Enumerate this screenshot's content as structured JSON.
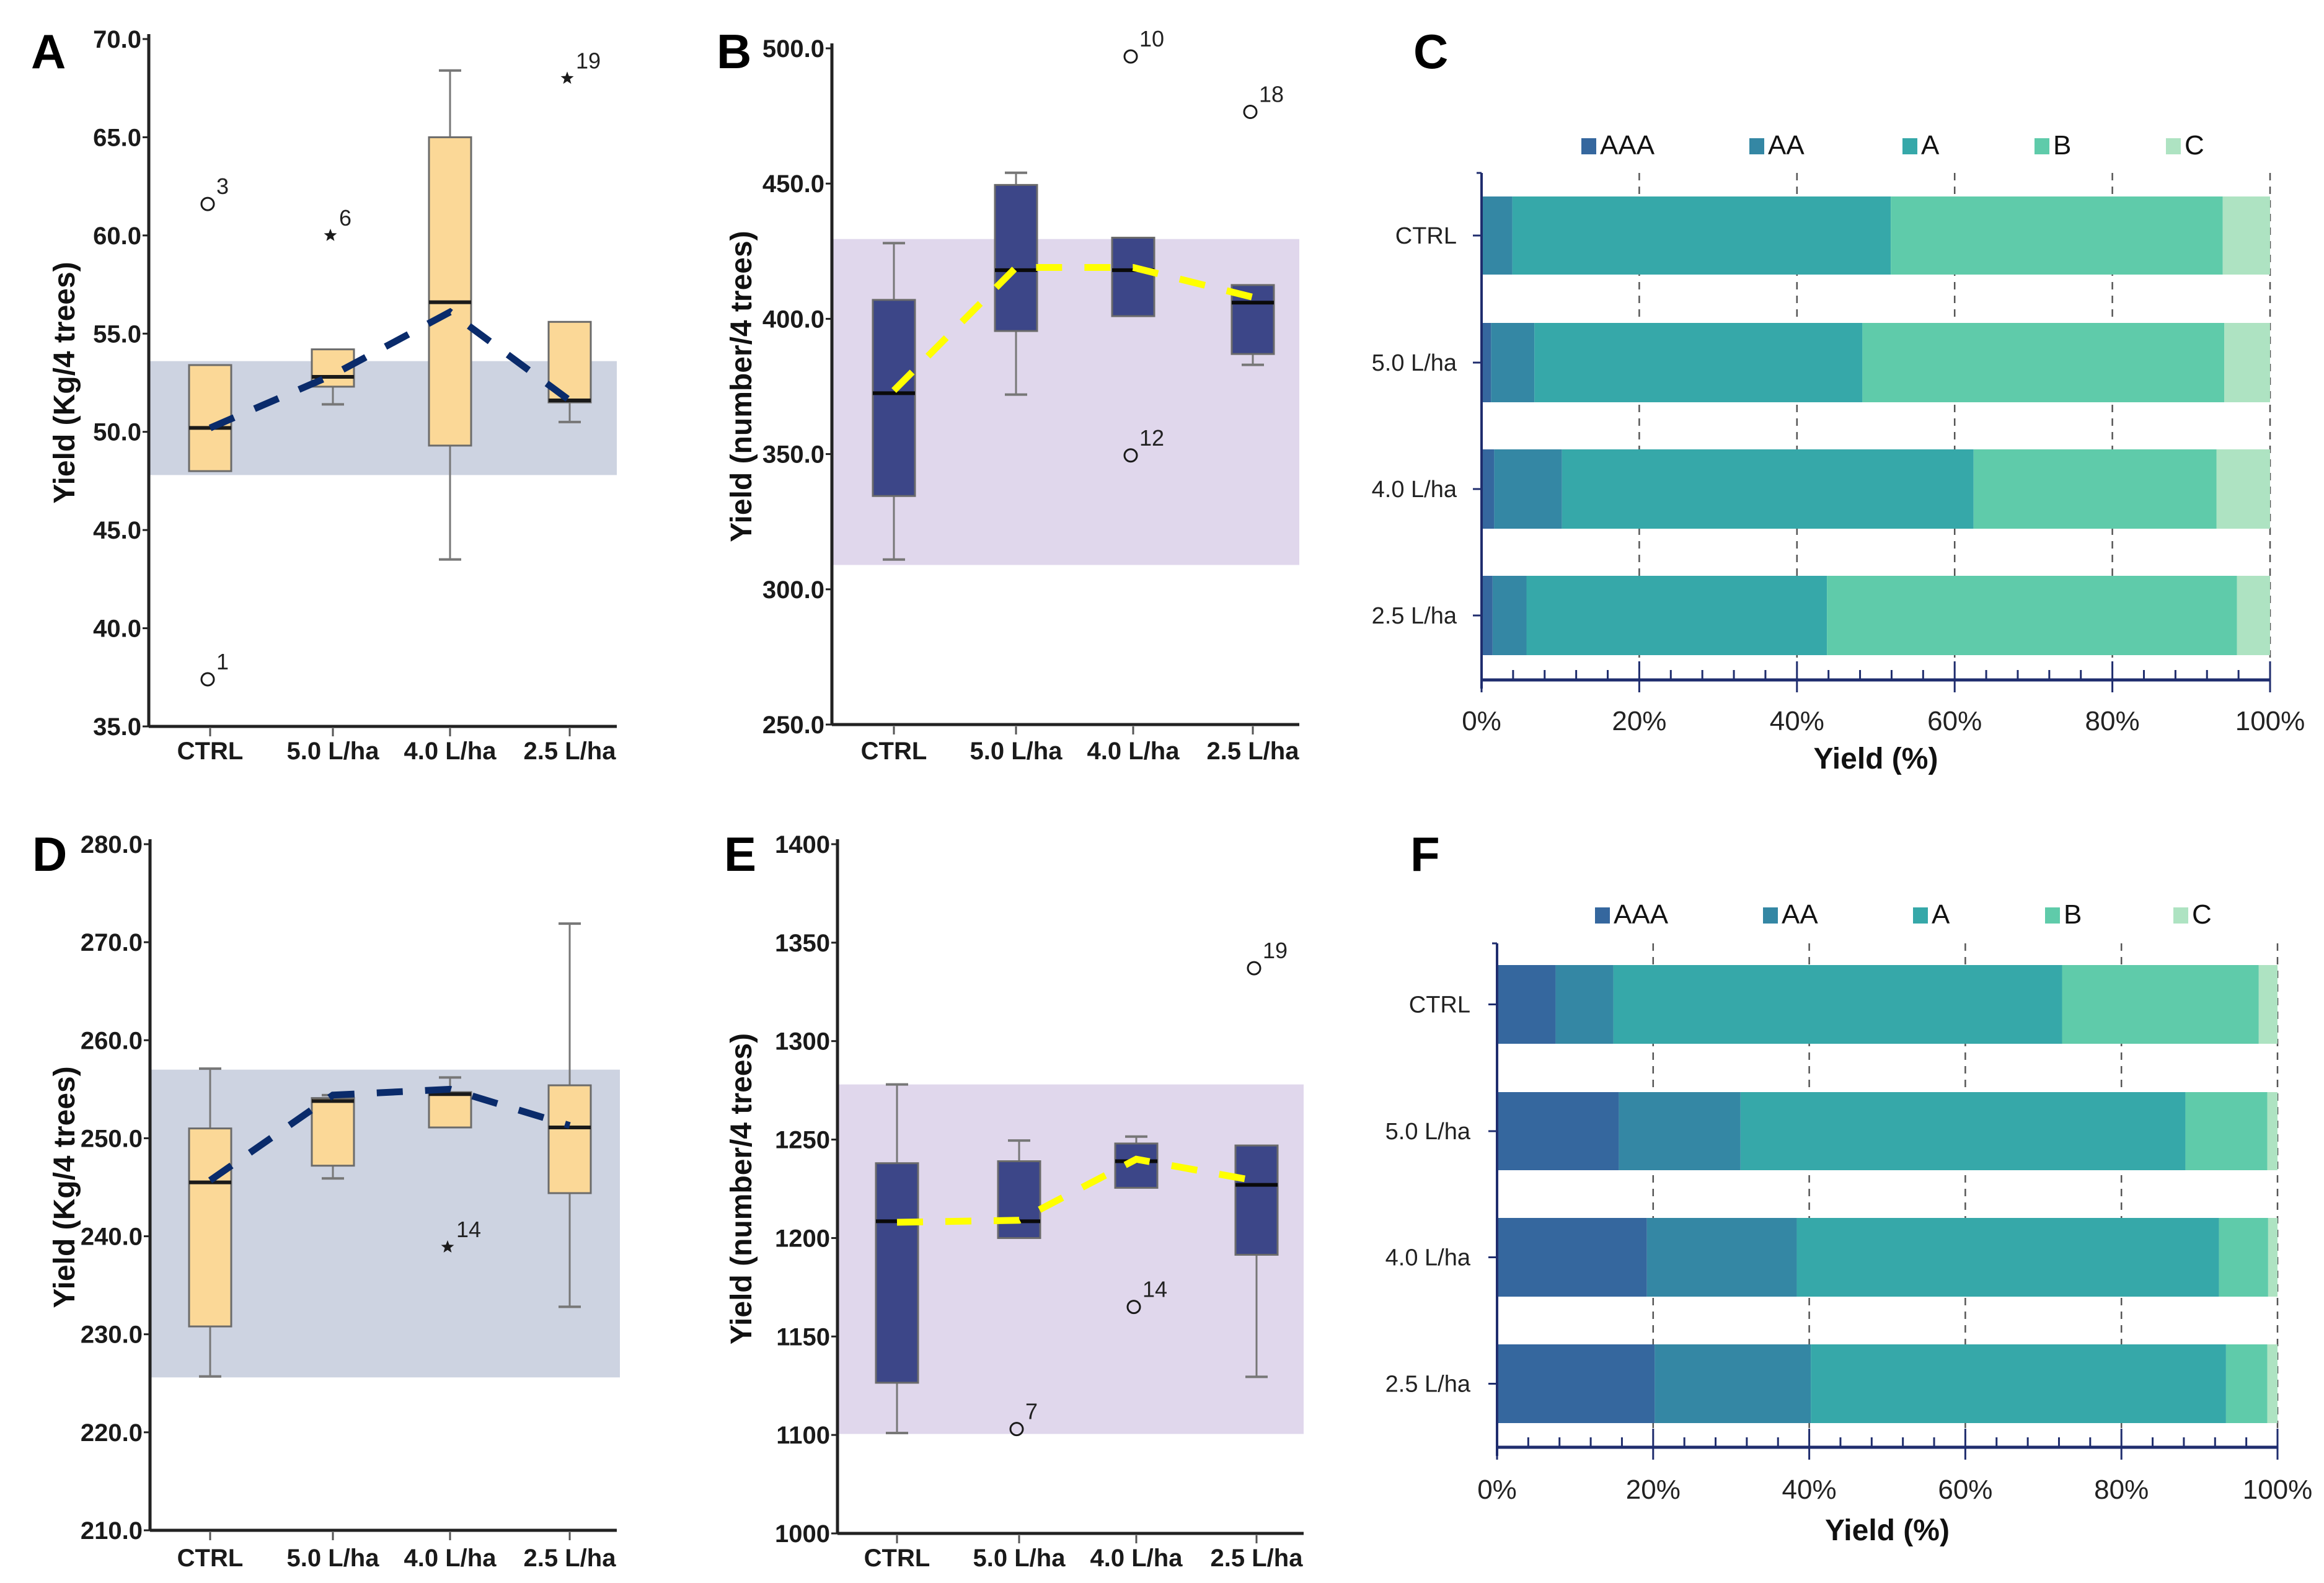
{
  "figure": {
    "panels": [
      "A",
      "B",
      "C",
      "D",
      "E",
      "F"
    ]
  },
  "chart_data": [
    {
      "panel": "A",
      "type": "box",
      "ylabel": "Yield (Kg/4 trees)",
      "xlabel": "",
      "categories": [
        "CTRL",
        "5.0 L/ha",
        "4.0 L/ha",
        "2.5 L/ha"
      ],
      "ylim": [
        35.0,
        70.0
      ],
      "yticks": [
        35.0,
        40.0,
        45.0,
        50.0,
        55.0,
        60.0,
        65.0,
        70.0
      ],
      "ytick_labels": [
        "35.0",
        "40.0",
        "45.0",
        "50.0",
        "55.0",
        "60.0",
        "65.0",
        "70.0"
      ],
      "reference_band": [
        47.8,
        53.6
      ],
      "colors": {
        "box": "#fbd897",
        "band": "#cdd3e1",
        "mean_line": "#0a2b6b",
        "median": "#1a1a1a"
      },
      "boxes": [
        {
          "category": "CTRL",
          "whisker_low": 48.0,
          "q1": 48.0,
          "median": 50.2,
          "q3": 53.4,
          "whisker_high": 53.4
        },
        {
          "category": "5.0 L/ha",
          "whisker_low": 51.4,
          "q1": 52.3,
          "median": 52.8,
          "q3": 54.2,
          "whisker_high": 54.2
        },
        {
          "category": "4.0 L/ha",
          "whisker_low": 43.5,
          "q1": 49.3,
          "median": 56.6,
          "q3": 65.0,
          "whisker_high": 68.4
        },
        {
          "category": "2.5 L/ha",
          "whisker_low": 50.5,
          "q1": 51.5,
          "median": 51.6,
          "q3": 55.6,
          "whisker_high": 55.6
        }
      ],
      "means": [
        50.2,
        52.9,
        56.1,
        51.6
      ],
      "outliers": [
        {
          "category": "CTRL",
          "value": 61.6,
          "label": "3",
          "marker": "circle"
        },
        {
          "category": "CTRL",
          "value": 37.4,
          "label": "1",
          "marker": "circle"
        },
        {
          "category": "5.0 L/ha",
          "value": 60.0,
          "label": "6",
          "marker": "star"
        },
        {
          "category": "2.5 L/ha",
          "value": 68.0,
          "label": "19",
          "marker": "star"
        }
      ]
    },
    {
      "panel": "B",
      "type": "box",
      "ylabel": "Yield (number/4 trees)",
      "xlabel": "",
      "categories": [
        "CTRL",
        "5.0 L/ha",
        "4.0 L/ha",
        "2.5 L/ha"
      ],
      "ylim": [
        250.0,
        500.0
      ],
      "yticks": [
        250.0,
        300.0,
        350.0,
        400.0,
        450.0,
        500.0
      ],
      "ytick_labels": [
        "250.0",
        "300.0",
        "350.0",
        "400.0",
        "450.0",
        "500.0"
      ],
      "reference_band": [
        309.0,
        429.5
      ],
      "colors": {
        "box": "#3c4688",
        "band": "#e0d7ec",
        "mean_line": "#ffff00",
        "median": "#0a0a0a"
      },
      "boxes": [
        {
          "category": "CTRL",
          "whisker_low": 311.0,
          "q1": 334.5,
          "median": 372.5,
          "q3": 407.0,
          "whisker_high": 428.0
        },
        {
          "category": "5.0 L/ha",
          "whisker_low": 372.0,
          "q1": 395.5,
          "median": 418.0,
          "q3": 449.5,
          "whisker_high": 454.0
        },
        {
          "category": "4.0 L/ha",
          "whisker_low": 401.0,
          "q1": 401.0,
          "median": 418.0,
          "q3": 430.0,
          "whisker_high": 430.0
        },
        {
          "category": "2.5 L/ha",
          "whisker_low": 383.0,
          "q1": 387.0,
          "median": 406.0,
          "q3": 412.5,
          "whisker_high": 412.5
        }
      ],
      "means": [
        373.5,
        419.0,
        419.0,
        408.0
      ],
      "outliers": [
        {
          "category": "4.0 L/ha",
          "value": 497.0,
          "label": "10",
          "marker": "circle"
        },
        {
          "category": "4.0 L/ha",
          "value": 349.5,
          "label": "12",
          "marker": "circle"
        },
        {
          "category": "2.5 L/ha",
          "value": 476.5,
          "label": "18",
          "marker": "circle"
        }
      ]
    },
    {
      "panel": "C",
      "type": "bar",
      "orientation": "horizontal-stacked-100",
      "xlabel": "Yield (%)",
      "ylabel": "",
      "categories": [
        "CTRL",
        "5.0 L/ha",
        "4.0 L/ha",
        "2.5 L/ha"
      ],
      "xlim": [
        0,
        100
      ],
      "xticks": [
        0,
        20,
        40,
        60,
        80,
        100
      ],
      "xtick_labels": [
        "0%",
        "20%",
        "40%",
        "60%",
        "80%",
        "100%"
      ],
      "grid": "vertical dashed",
      "legend": "top",
      "series": [
        {
          "name": "AAA",
          "color": "#35679e",
          "values": [
            0.0,
            1.2,
            1.6,
            1.4
          ]
        },
        {
          "name": "AA",
          "color": "#3487a4",
          "values": [
            3.9,
            5.5,
            8.6,
            4.3
          ]
        },
        {
          "name": "A",
          "color": "#36a8a9",
          "values": [
            48.0,
            41.6,
            52.2,
            38.1
          ]
        },
        {
          "name": "B",
          "color": "#5fcbaa",
          "values": [
            42.1,
            45.9,
            30.8,
            52.0
          ]
        },
        {
          "name": "C",
          "color": "#aee3c2",
          "values": [
            6.0,
            5.8,
            6.8,
            4.2
          ]
        }
      ]
    },
    {
      "panel": "D",
      "type": "box",
      "ylabel": "Yield (Kg/4 trees)",
      "xlabel": "",
      "categories": [
        "CTRL",
        "5.0 L/ha",
        "4.0 L/ha",
        "2.5 L/ha"
      ],
      "ylim": [
        210.0,
        280.0
      ],
      "yticks": [
        210.0,
        220.0,
        230.0,
        240.0,
        250.0,
        260.0,
        270.0,
        280.0
      ],
      "ytick_labels": [
        "210.0",
        "220.0",
        "230.0",
        "240.0",
        "250.0",
        "260.0",
        "270.0",
        "280.0"
      ],
      "reference_band": [
        225.6,
        257.0
      ],
      "colors": {
        "box": "#fbd897",
        "band": "#cdd3e1",
        "mean_line": "#0a2b6b",
        "median": "#1a1a1a"
      },
      "boxes": [
        {
          "category": "CTRL",
          "whisker_low": 225.7,
          "q1": 230.8,
          "median": 245.5,
          "q3": 251.0,
          "whisker_high": 257.1
        },
        {
          "category": "5.0 L/ha",
          "whisker_low": 245.9,
          "q1": 247.2,
          "median": 253.8,
          "q3": 254.1,
          "whisker_high": 254.4
        },
        {
          "category": "4.0 L/ha",
          "whisker_low": 251.1,
          "q1": 251.1,
          "median": 254.5,
          "q3": 254.7,
          "whisker_high": 256.2
        },
        {
          "category": "2.5 L/ha",
          "whisker_low": 232.8,
          "q1": 244.4,
          "median": 251.1,
          "q3": 255.4,
          "whisker_high": 271.9
        }
      ],
      "means": [
        245.7,
        254.4,
        255.0,
        251.3
      ],
      "outliers": [
        {
          "category": "4.0 L/ha",
          "value": 238.9,
          "label": "14",
          "marker": "star"
        }
      ]
    },
    {
      "panel": "E",
      "type": "box",
      "ylabel": "Yield (number/4 trees)",
      "xlabel": "",
      "categories": [
        "CTRL",
        "5.0 L/ha",
        "4.0 L/ha",
        "2.5 L/ha"
      ],
      "ylim": [
        1000,
        1400
      ],
      "yticks": [
        1000,
        1100,
        1150,
        1200,
        1250,
        1300,
        1350,
        1400
      ],
      "ytick_labels": [
        "1000",
        "1100",
        "1150",
        "1200",
        "1250",
        "1300",
        "1350",
        "1400"
      ],
      "reference_band": [
        1100.5,
        1278.0
      ],
      "colors": {
        "box": "#3c4688",
        "band": "#e0d7ec",
        "mean_line": "#ffff00",
        "median": "#0a0a0a"
      },
      "boxes": [
        {
          "category": "CTRL",
          "whisker_low": 1101.0,
          "q1": 1126.5,
          "median": 1208.5,
          "q3": 1238.0,
          "whisker_high": 1278.0
        },
        {
          "category": "5.0 L/ha",
          "whisker_low": 1200.0,
          "q1": 1200.0,
          "median": 1208.5,
          "q3": 1239.0,
          "whisker_high": 1249.5
        },
        {
          "category": "4.0 L/ha",
          "whisker_low": 1225.5,
          "q1": 1225.5,
          "median": 1239.0,
          "q3": 1248.0,
          "whisker_high": 1251.5
        },
        {
          "category": "2.5 L/ha",
          "whisker_low": 1129.5,
          "q1": 1191.5,
          "median": 1227.0,
          "q3": 1247.0,
          "whisker_high": 1247.0
        }
      ],
      "means": [
        1208.0,
        1209.0,
        1240.0,
        1229.0
      ],
      "outliers": [
        {
          "category": "5.0 L/ha",
          "value": 1103.0,
          "label": "7",
          "marker": "circle"
        },
        {
          "category": "4.0 L/ha",
          "value": 1165.0,
          "label": "14",
          "marker": "circle"
        },
        {
          "category": "2.5 L/ha",
          "value": 1337.0,
          "label": "19",
          "marker": "circle"
        }
      ]
    },
    {
      "panel": "F",
      "type": "bar",
      "orientation": "horizontal-stacked-100",
      "xlabel": "Yield (%)",
      "ylabel": "",
      "categories": [
        "CTRL",
        "5.0 L/ha",
        "4.0 L/ha",
        "2.5 L/ha"
      ],
      "xlim": [
        0,
        100
      ],
      "xticks": [
        0,
        20,
        40,
        60,
        80,
        100
      ],
      "xtick_labels": [
        "0%",
        "20%",
        "40%",
        "60%",
        "80%",
        "100%"
      ],
      "grid": "vertical dashed",
      "legend": "top",
      "series": [
        {
          "name": "AAA",
          "color": "#35679e",
          "values": [
            7.5,
            15.6,
            19.2,
            20.2
          ]
        },
        {
          "name": "AA",
          "color": "#3487a4",
          "values": [
            7.4,
            15.6,
            19.2,
            20.0
          ]
        },
        {
          "name": "A",
          "color": "#36a8a9",
          "values": [
            57.5,
            57.0,
            54.1,
            53.2
          ]
        },
        {
          "name": "B",
          "color": "#5fcbaa",
          "values": [
            25.2,
            10.5,
            6.3,
            5.3
          ]
        },
        {
          "name": "C",
          "color": "#aee3c2",
          "values": [
            2.4,
            1.3,
            1.2,
            1.3
          ]
        }
      ]
    }
  ]
}
